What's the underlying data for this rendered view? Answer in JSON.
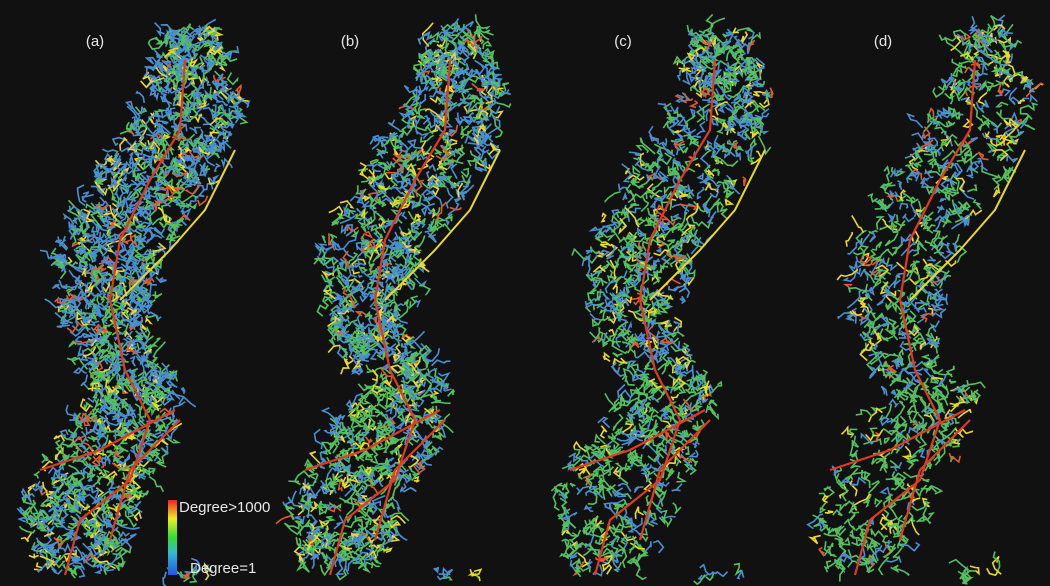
{
  "panels": [
    {
      "label": "(a)"
    },
    {
      "label": "(b)"
    },
    {
      "label": "(c)"
    },
    {
      "label": "(d)"
    }
  ],
  "legend": {
    "max_label": "Degree>1000",
    "min_label": "Degree=1"
  }
}
